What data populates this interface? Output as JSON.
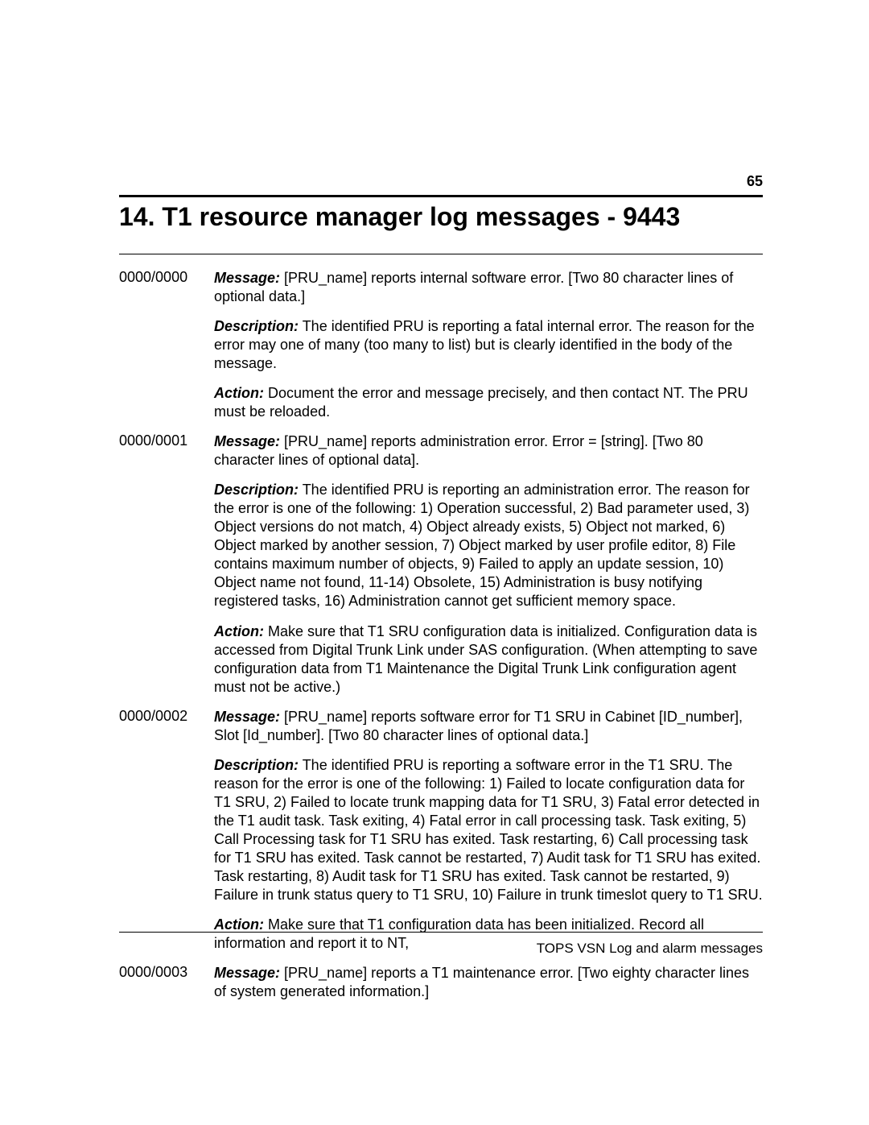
{
  "page_number": "65",
  "title": "14. T1 resource manager log messages - 9443",
  "labels": {
    "message": "Message:",
    "description": "Description:",
    "action": "Action:"
  },
  "entries": [
    {
      "code": "0000/0000",
      "message": "  [PRU_name] reports internal software error.  [Two 80 character lines of optional data.]",
      "description": "  The identified PRU is reporting a fatal internal error.  The reason for the error may one of many (too many to list) but is clearly identified in the body of the message.",
      "action": "  Document the error and message precisely, and then contact NT.  The PRU must be reloaded."
    },
    {
      "code": "0000/0001",
      "message": "  [PRU_name] reports administration error.  Error = [string].  [Two 80 character lines of optional data].",
      "description": "  The identified PRU is reporting an administration error.  The reason for the error is one of the following: 1) Operation successful, 2) Bad parameter used, 3) Object versions do not match, 4) Object already exists, 5) Object not marked, 6) Object marked by another session, 7) Object marked by user profile editor, 8) File contains maximum number of objects, 9) Failed to apply an update session, 10) Object name not found, 11-14) Obsolete, 15) Administration is busy notifying registered tasks, 16) Administration cannot get sufficient memory space.",
      "action": "    Make sure that T1 SRU configuration data is initialized.  Configuration data is accessed from Digital Trunk Link under SAS configuration.  (When attempting to save configuration data from T1 Maintenance the Digital Trunk Link configuration agent must not be active.)"
    },
    {
      "code": "0000/0002",
      "message": "  [PRU_name] reports software error for T1 SRU in Cabinet [ID_number], Slot [Id_number].  [Two 80 character lines of optional data.]",
      "description": "  The identified PRU is reporting a software error in the T1 SRU.  The reason for the error is one of the following: 1) Failed to locate configuration data for T1 SRU, 2) Failed to locate trunk mapping data for T1 SRU, 3) Fatal error detected in the T1 audit task.  Task exiting, 4) Fatal error in call processing task.  Task exiting, 5) Call Processing task for T1 SRU has exited.  Task restarting, 6) Call processing task for T1 SRU has exited.  Task cannot be restarted, 7) Audit task for T1 SRU has exited.  Task restarting, 8) Audit task for T1 SRU has exited.  Task cannot be restarted, 9) Failure in trunk status query to T1 SRU, 10) Failure in trunk timeslot query to T1 SRU.",
      "action": "    Make sure that T1 configuration data has been initialized.  Record all information and report it to NT,"
    },
    {
      "code": "0000/0003",
      "message": "  [PRU_name] reports a T1 maintenance error.  [Two eighty character lines of system generated information.]",
      "description": null,
      "action": null
    }
  ],
  "footer": "TOPS VSN Log and alarm messages"
}
